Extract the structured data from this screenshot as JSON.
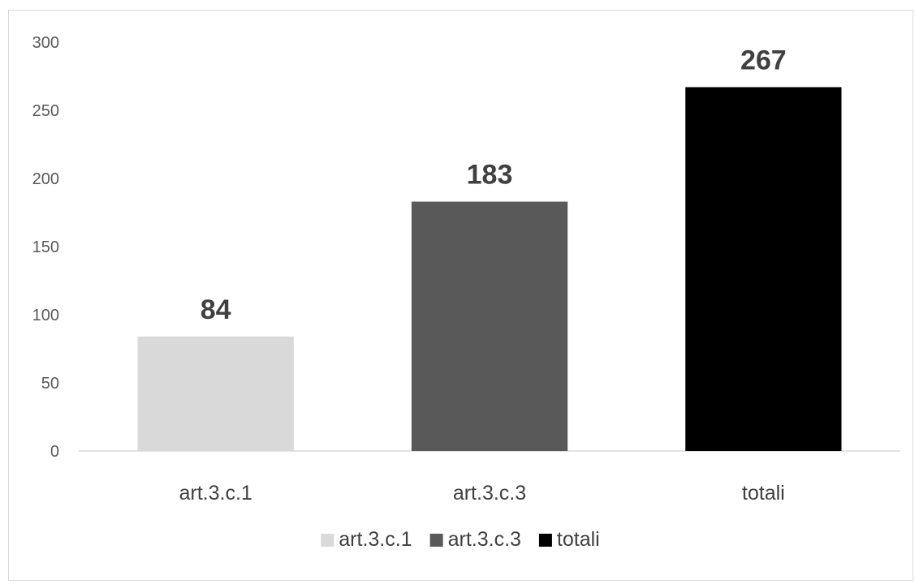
{
  "chart_data": {
    "type": "bar",
    "title": "",
    "xlabel": "",
    "ylabel": "",
    "categories": [
      "art.3.c.1",
      "art.3.c.3",
      "totali"
    ],
    "values": [
      84,
      183,
      267
    ],
    "colors": [
      "#d9d9d9",
      "#595959",
      "#000000"
    ],
    "ylim": [
      0,
      300
    ],
    "yticks": [
      0,
      50,
      100,
      150,
      200,
      250,
      300
    ],
    "grid": false,
    "data_labels": true,
    "legend": {
      "position": "bottom",
      "entries": [
        "art.3.c.1",
        "art.3.c.3",
        "totali"
      ]
    }
  }
}
